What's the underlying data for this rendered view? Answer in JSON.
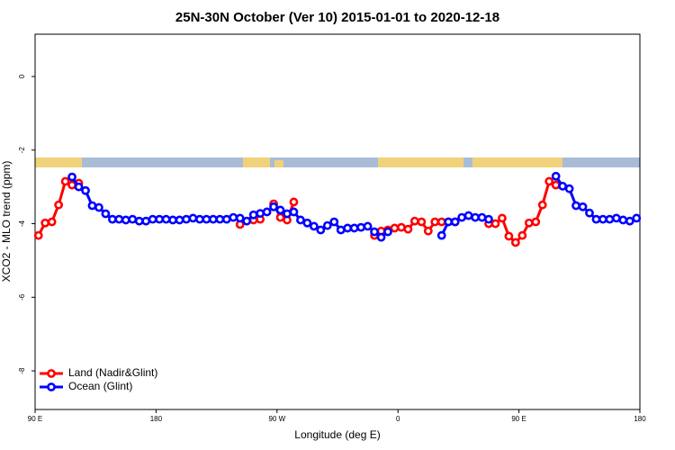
{
  "chart_data": {
    "type": "line",
    "title": "25N-30N October (Ver 10)   2015-01-01 to 2020-12-18",
    "xlabel": "Longitude (deg E)",
    "ylabel": "XCO2 - MLO trend (ppm)",
    "xlim": [
      90,
      540
    ],
    "xticks": [
      {
        "value": 90,
        "label": "90 E"
      },
      180,
      {
        "value": 270,
        "label": "90 W"
      },
      {
        "value": 360,
        "label": "0"
      },
      {
        "value": 450,
        "label": "90 E"
      },
      {
        "value": 540,
        "label": "180"
      }
    ],
    "ylim": [
      -9.05,
      1.15
    ],
    "yticks": [
      0,
      -2,
      -4,
      -6,
      -8
    ],
    "legend": "bottom-left",
    "x": [
      92.5,
      97.5,
      102.5,
      107.5,
      112.5,
      117.5,
      122.5,
      127.5,
      132.5,
      137.5,
      142.5,
      147.5,
      152.5,
      157.5,
      162.5,
      167.5,
      172.5,
      177.5,
      182.5,
      187.5,
      192.5,
      197.5,
      202.5,
      207.5,
      212.5,
      217.5,
      222.5,
      227.5,
      232.5,
      237.5,
      242.5,
      247.5,
      252.5,
      257.5,
      262.5,
      267.5,
      272.5,
      277.5,
      282.5,
      287.5,
      292.5,
      297.5,
      302.5,
      307.5,
      312.5,
      317.5,
      322.5,
      327.5,
      332.5,
      337.5,
      342.5,
      347.5,
      352.5,
      357.5,
      362.5,
      367.5,
      372.5,
      377.5,
      382.5,
      387.5,
      392.5,
      397.5,
      402.5,
      407.5,
      412.5,
      417.5,
      422.5,
      427.5,
      432.5,
      437.5,
      442.5,
      447.5,
      452.5,
      457.5,
      462.5,
      467.5,
      472.5,
      477.5,
      482.5,
      487.5,
      492.5,
      497.5,
      502.5,
      507.5,
      512.5,
      517.5,
      522.5,
      527.5,
      532.5,
      537.5
    ],
    "series": [
      {
        "name": "Land (Nadir&Glint)",
        "color": "#ff0000",
        "values": [
          -4.32,
          -3.98,
          -3.95,
          -3.49,
          -2.85,
          -2.95,
          -2.9,
          null,
          null,
          null,
          null,
          null,
          null,
          null,
          null,
          null,
          null,
          null,
          null,
          null,
          null,
          null,
          null,
          null,
          null,
          null,
          null,
          null,
          null,
          null,
          -4.02,
          null,
          -3.9,
          -3.88,
          null,
          -3.46,
          -3.83,
          -3.9,
          -3.41,
          null,
          null,
          null,
          null,
          null,
          null,
          null,
          null,
          null,
          null,
          null,
          -4.32,
          -4.2,
          -4.17,
          -4.12,
          -4.1,
          -4.15,
          -3.93,
          -3.95,
          -4.2,
          -3.95,
          -3.95,
          -3.95,
          -3.95,
          null,
          null,
          null,
          null,
          -4.0,
          -4.0,
          -3.85,
          -4.34,
          -4.51,
          -4.32,
          -3.98,
          -3.95,
          -3.49,
          -2.85,
          -2.95,
          null,
          null,
          null,
          null,
          null,
          null,
          null,
          null,
          null,
          null,
          null,
          null
        ]
      },
      {
        "name": "Ocean (Glint)",
        "color": "#0000ff",
        "values": [
          null,
          null,
          null,
          null,
          null,
          -2.73,
          -3.0,
          -3.1,
          -3.51,
          -3.56,
          -3.73,
          -3.88,
          -3.88,
          -3.9,
          -3.88,
          -3.93,
          -3.93,
          -3.88,
          -3.88,
          -3.88,
          -3.9,
          -3.9,
          -3.88,
          -3.85,
          -3.88,
          -3.88,
          -3.88,
          -3.88,
          -3.88,
          -3.83,
          -3.85,
          -3.93,
          -3.76,
          -3.72,
          -3.68,
          -3.54,
          -3.63,
          -3.73,
          -3.68,
          -3.9,
          -3.98,
          -4.07,
          -4.17,
          -4.05,
          -3.95,
          -4.17,
          -4.12,
          -4.12,
          -4.1,
          -4.07,
          -4.22,
          -4.37,
          -4.22,
          null,
          null,
          null,
          null,
          null,
          null,
          null,
          -4.32,
          -3.95,
          -3.95,
          -3.83,
          -3.78,
          -3.83,
          -3.83,
          -3.88,
          null,
          null,
          null,
          null,
          null,
          null,
          null,
          null,
          null,
          -2.71,
          -2.98,
          -3.05,
          -3.51,
          -3.54,
          -3.71,
          -3.88,
          -3.88,
          -3.88,
          -3.85,
          -3.9,
          -3.93,
          -3.85
        ]
      }
    ]
  }
}
